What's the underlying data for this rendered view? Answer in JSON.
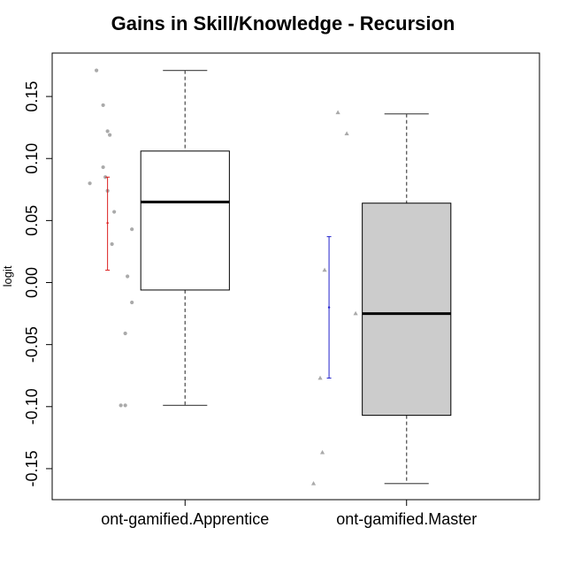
{
  "chart_data": {
    "type": "box",
    "title": "Gains in Skill/Knowledge - Recursion",
    "xlabel": "",
    "ylabel": "logit",
    "ylim": [
      -0.175,
      0.185
    ],
    "y_ticks": [
      -0.15,
      -0.1,
      -0.05,
      0.0,
      0.05,
      0.1,
      0.15
    ],
    "y_tick_labels": [
      "-0.15",
      "-0.10",
      "-0.05",
      "0.00",
      "0.05",
      "0.10",
      "0.15"
    ],
    "categories": [
      "ont-gamified.Apprentice",
      "ont-gamified.Master"
    ],
    "boxes": [
      {
        "category": "ont-gamified.Apprentice",
        "whisker_low": -0.099,
        "q1": -0.006,
        "median": 0.065,
        "q3": 0.106,
        "whisker_high": 0.171,
        "fill": "#ffffff",
        "points": [
          0.171,
          0.143,
          0.122,
          0.119,
          0.093,
          0.085,
          0.074,
          0.08,
          0.057,
          0.043,
          0.031,
          0.005,
          -0.016,
          -0.041,
          -0.099,
          -0.099
        ],
        "point_shape": "circle",
        "mean": 0.048,
        "error_low": 0.01,
        "error_high": 0.085,
        "error_color": "#dd2222"
      },
      {
        "category": "ont-gamified.Master",
        "whisker_low": -0.162,
        "q1": -0.107,
        "median": -0.025,
        "q3": 0.064,
        "whisker_high": 0.136,
        "fill": "#cccccc",
        "points": [
          0.137,
          0.12,
          0.01,
          -0.025,
          -0.077,
          -0.137,
          -0.162
        ],
        "point_shape": "triangle",
        "mean": -0.02,
        "error_low": -0.077,
        "error_high": 0.037,
        "error_color": "#2222cc"
      }
    ],
    "point_color": "#aaaaaa",
    "grid": false,
    "legend": "none"
  }
}
